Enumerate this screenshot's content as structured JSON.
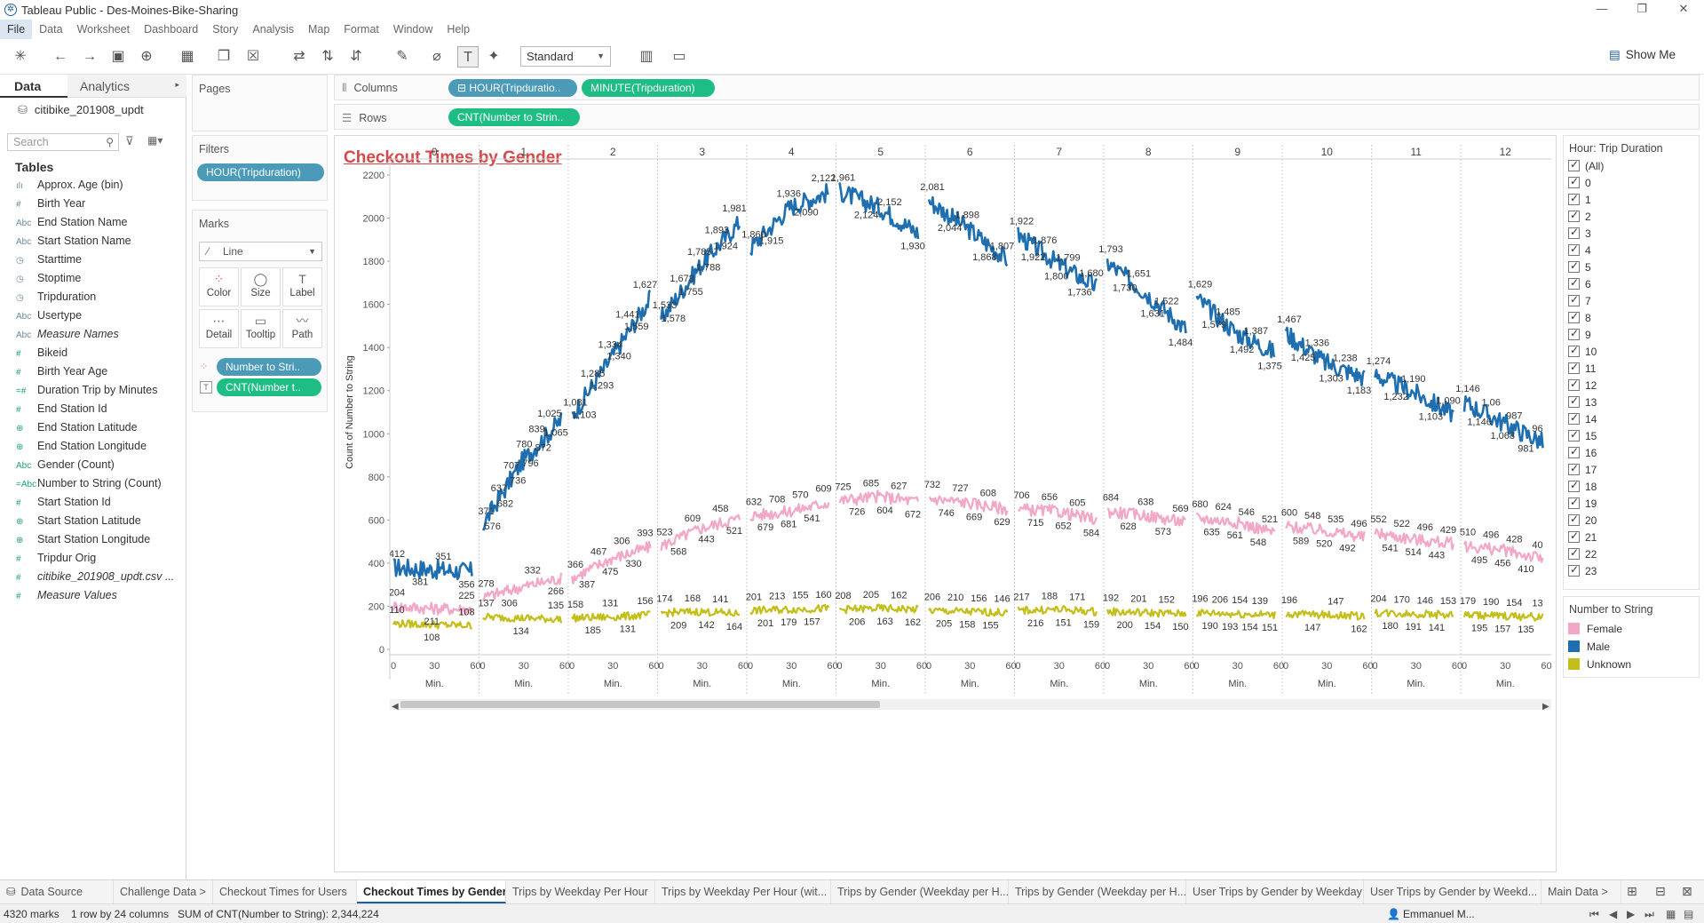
{
  "window": {
    "title": "Tableau Public - Des-Moines-Bike-Sharing",
    "controls": [
      "—",
      "❐",
      "✕"
    ]
  },
  "menu": [
    "File",
    "Data",
    "Worksheet",
    "Dashboard",
    "Story",
    "Analysis",
    "Map",
    "Format",
    "Window",
    "Help"
  ],
  "toolbar": {
    "fit": "Standard",
    "show_me": "Show Me"
  },
  "data_pane": {
    "tab_data": "Data",
    "tab_analytics": "Analytics",
    "datasource": "citibike_201908_updt",
    "search_placeholder": "Search",
    "tables_heading": "Tables",
    "fields": [
      {
        "icon": "ılı",
        "label": "Approx. Age (bin)",
        "kind": "dim"
      },
      {
        "icon": "#",
        "label": "Birth Year",
        "kind": "dim"
      },
      {
        "icon": "Abc",
        "label": "End Station Name",
        "kind": "dim"
      },
      {
        "icon": "Abc",
        "label": "Start Station Name",
        "kind": "dim"
      },
      {
        "icon": "◷",
        "label": "Starttime",
        "kind": "dim"
      },
      {
        "icon": "◷",
        "label": "Stoptime",
        "kind": "dim"
      },
      {
        "icon": "◷",
        "label": "Tripduration",
        "kind": "dim"
      },
      {
        "icon": "Abc",
        "label": "Usertype",
        "kind": "dim"
      },
      {
        "icon": "Abc",
        "label": "Measure Names",
        "kind": "dim-italic"
      },
      {
        "icon": "#",
        "label": "Bikeid",
        "kind": "meas"
      },
      {
        "icon": "#",
        "label": "Birth Year Age",
        "kind": "meas"
      },
      {
        "icon": "=#",
        "label": "Duration Trip by Minutes",
        "kind": "meas"
      },
      {
        "icon": "#",
        "label": "End Station Id",
        "kind": "meas"
      },
      {
        "icon": "⊕",
        "label": "End Station Latitude",
        "kind": "meas"
      },
      {
        "icon": "⊕",
        "label": "End Station Longitude",
        "kind": "meas"
      },
      {
        "icon": "Abc",
        "label": "Gender (Count)",
        "kind": "meas"
      },
      {
        "icon": "=Abc",
        "label": "Number to String (Count)",
        "kind": "meas"
      },
      {
        "icon": "#",
        "label": "Start Station Id",
        "kind": "meas"
      },
      {
        "icon": "⊕",
        "label": "Start Station Latitude",
        "kind": "meas"
      },
      {
        "icon": "⊕",
        "label": "Start Station Longitude",
        "kind": "meas"
      },
      {
        "icon": "#",
        "label": "Tripdur Orig",
        "kind": "meas"
      },
      {
        "icon": "#",
        "label": "citibike_201908_updt.csv ...",
        "kind": "meas-italic"
      },
      {
        "icon": "#",
        "label": "Measure Values",
        "kind": "meas-italic"
      }
    ]
  },
  "cards": {
    "pages": "Pages",
    "filters": "Filters",
    "filter_pill": "HOUR(Tripduration)",
    "marks": "Marks",
    "mark_type": "Line",
    "mark_buttons": [
      {
        "icon": "⁘",
        "label": "Color"
      },
      {
        "icon": "◯",
        "label": "Size"
      },
      {
        "icon": "T",
        "label": "Label"
      },
      {
        "icon": "⋯",
        "label": "Detail"
      },
      {
        "icon": "▭",
        "label": "Tooltip"
      },
      {
        "icon": "〰",
        "label": "Path"
      }
    ],
    "mark_pills": [
      "Number to Stri..",
      "CNT(Number t.."
    ]
  },
  "shelves": {
    "columns_label": "Columns",
    "rows_label": "Rows",
    "columns_pills": [
      "⊟ HOUR(Tripduratio..",
      "MINUTE(Tripduration)"
    ],
    "rows_pills": [
      "CNT(Number to Strin.."
    ]
  },
  "view": {
    "title": "Checkout Times by Gender"
  },
  "hour_filter": {
    "title": "Hour: Trip Duration",
    "items": [
      "(All)",
      "0",
      "1",
      "2",
      "3",
      "4",
      "5",
      "6",
      "7",
      "8",
      "9",
      "10",
      "11",
      "12",
      "13",
      "14",
      "15",
      "16",
      "17",
      "18",
      "19",
      "20",
      "21",
      "22",
      "23"
    ]
  },
  "color_legend": {
    "title": "Number to String",
    "items": [
      {
        "label": "Female",
        "color": "#f2a7c6"
      },
      {
        "label": "Male",
        "color": "#1f6fb0"
      },
      {
        "label": "Unknown",
        "color": "#c4be1a"
      }
    ]
  },
  "sheet_tabs": {
    "tabs": [
      "Data Source",
      "Challenge Data >",
      "Checkout Times for Users",
      "Checkout Times by Gender",
      "Trips by Weekday Per Hour",
      "Trips by Weekday Per Hour (wit...",
      "Trips by Gender (Weekday per H...",
      "Trips by Gender (Weekday per H...",
      "User Trips by Gender by Weekday",
      "User Trips by Gender by Weekd...",
      "Main Data >"
    ],
    "active_index": 3
  },
  "status": {
    "marks": "4320 marks",
    "rows": "1 row by 24 columns",
    "sum": "SUM of CNT(Number to String): 2,344,224",
    "user": "Emmanuel M..."
  },
  "chart_data": {
    "type": "line",
    "title": "Checkout Times by Gender",
    "xlabel": "Min.",
    "ylabel": "Count of Number to String",
    "hours_shown": [
      0,
      1,
      2,
      3,
      4,
      5,
      6,
      7,
      8,
      9,
      10,
      11,
      12
    ],
    "minute_ticks": [
      0,
      30,
      60
    ],
    "ylim": [
      0,
      2200
    ],
    "y_ticks": [
      0,
      200,
      400,
      600,
      800,
      1000,
      1200,
      1400,
      1600,
      1800,
      2000,
      2200
    ],
    "series": [
      {
        "name": "Male",
        "color": "#1f6fb0",
        "hour_segments": [
          [
            380,
            370,
            360
          ],
          [
            576,
            870,
            1065
          ],
          [
            1081,
            1350,
            1627
          ],
          [
            1533,
            1780,
            1981
          ],
          [
            1860,
            2050,
            2122
          ],
          [
            2124,
            2050,
            1930
          ],
          [
            2081,
            1950,
            1807
          ],
          [
            1922,
            1790,
            1680
          ],
          [
            1793,
            1650,
            1484
          ],
          [
            1629,
            1470,
            1375
          ],
          [
            1467,
            1330,
            1260
          ],
          [
            1274,
            1190,
            1090
          ],
          [
            1146,
            1050,
            960
          ]
        ],
        "labels": [
          [
            "412",
            "381",
            "351",
            "356"
          ],
          [
            "371",
            "576",
            "637",
            "682",
            "707",
            "736",
            "780",
            "796",
            "839",
            "872",
            "1,025",
            "1,065"
          ],
          [
            "1,081",
            "1,103",
            "1,285",
            "1,293",
            "1,334",
            "1,340",
            "1,441",
            "1,559",
            "1,627"
          ],
          [
            "1,533",
            "1,578",
            "1,678",
            "1,755",
            "1,785",
            "1,788",
            "1,893",
            "1,924",
            "1,981"
          ],
          [
            "1,860",
            "1,915",
            "1,936",
            "2,090",
            "2,122"
          ],
          [
            "1,961",
            "2,124",
            "2,152",
            "1,930"
          ],
          [
            "2,081",
            "2,044",
            "1,898",
            "1,868",
            "1,807"
          ],
          [
            "1,922",
            "1,922",
            "1,876",
            "1,800",
            "1,799",
            "1,736",
            "1,680"
          ],
          [
            "1,793",
            "1,730",
            "1,651",
            "1,631",
            "1,522",
            "1,484"
          ],
          [
            "1,629",
            "1,579",
            "1,485",
            "1,492",
            "1,387",
            "1,375"
          ],
          [
            "1,467",
            "1,425",
            "1,336",
            "1,303",
            "1,238",
            "1,183"
          ],
          [
            "1,274",
            "1,232",
            "1,190",
            "1,103",
            "1,090"
          ],
          [
            "1,146",
            "1,146",
            "1,06",
            "1,068",
            "987",
            "981",
            "96"
          ]
        ]
      },
      {
        "name": "Female",
        "color": "#f2a7c6",
        "hour_segments": [
          [
            200,
            190,
            185
          ],
          [
            240,
            290,
            330
          ],
          [
            330,
            420,
            475
          ],
          [
            480,
            560,
            609
          ],
          [
            620,
            640,
            681
          ],
          [
            690,
            710,
            685
          ],
          [
            700,
            680,
            650
          ],
          [
            650,
            640,
            600
          ],
          [
            640,
            620,
            590
          ],
          [
            610,
            590,
            540
          ],
          [
            570,
            550,
            520
          ],
          [
            540,
            510,
            490
          ],
          [
            480,
            460,
            420
          ]
        ],
        "labels": [
          [
            "204",
            "211",
            "225"
          ],
          [
            "278",
            "306",
            "332",
            "266"
          ],
          [
            "366",
            "387",
            "467",
            "475",
            "306",
            "330",
            "393"
          ],
          [
            "523",
            "568",
            "609",
            "443",
            "458",
            "521"
          ],
          [
            "632",
            "679",
            "708",
            "681",
            "570",
            "541",
            "609"
          ],
          [
            "725",
            "726",
            "685",
            "604",
            "627",
            "672"
          ],
          [
            "732",
            "746",
            "727",
            "669",
            "608",
            "629"
          ],
          [
            "706",
            "715",
            "656",
            "652",
            "605",
            "584"
          ],
          [
            "684",
            "628",
            "638",
            "573",
            "569"
          ],
          [
            "680",
            "635",
            "624",
            "561",
            "546",
            "548",
            "521"
          ],
          [
            "600",
            "589",
            "548",
            "520",
            "535",
            "492",
            "496"
          ],
          [
            "552",
            "541",
            "522",
            "514",
            "496",
            "443",
            "429"
          ],
          [
            "510",
            "495",
            "496",
            "456",
            "428",
            "410",
            "40"
          ]
        ]
      },
      {
        "name": "Unknown",
        "color": "#c4be1a",
        "hour_segments": [
          [
            120,
            115,
            110
          ],
          [
            150,
            145,
            140
          ],
          [
            145,
            150,
            160
          ],
          [
            170,
            175,
            165
          ],
          [
            180,
            185,
            190
          ],
          [
            185,
            190,
            185
          ],
          [
            180,
            175,
            170
          ],
          [
            180,
            185,
            175
          ],
          [
            175,
            170,
            165
          ],
          [
            170,
            165,
            160
          ],
          [
            165,
            160,
            155
          ],
          [
            170,
            165,
            160
          ],
          [
            160,
            155,
            150
          ]
        ],
        "labels": [
          [
            "110",
            "108",
            "108"
          ],
          [
            "137",
            "134",
            "135"
          ],
          [
            "158",
            "185",
            "131",
            "131",
            "156"
          ],
          [
            "174",
            "209",
            "168",
            "142",
            "141",
            "164"
          ],
          [
            "201",
            "201",
            "213",
            "179",
            "155",
            "157",
            "160"
          ],
          [
            "208",
            "206",
            "205",
            "163",
            "162",
            "162"
          ],
          [
            "206",
            "205",
            "210",
            "158",
            "156",
            "155",
            "146"
          ],
          [
            "217",
            "216",
            "188",
            "151",
            "171",
            "159"
          ],
          [
            "192",
            "200",
            "201",
            "154",
            "152",
            "150"
          ],
          [
            "196",
            "190",
            "206",
            "193",
            "154",
            "154",
            "139",
            "151"
          ],
          [
            "196",
            "147",
            "147",
            "162"
          ],
          [
            "204",
            "180",
            "170",
            "191",
            "146",
            "141",
            "153"
          ],
          [
            "179",
            "195",
            "190",
            "157",
            "154",
            "135",
            "13"
          ]
        ]
      }
    ]
  }
}
